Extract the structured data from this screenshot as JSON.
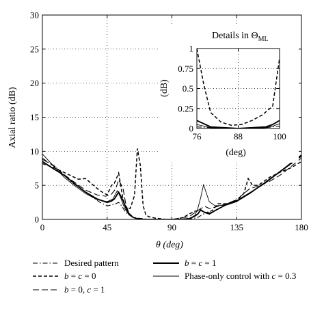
{
  "chart_data": [
    {
      "type": "line",
      "title": "",
      "xlabel": "θ (deg)",
      "ylabel": "Axial ratio (dB)",
      "xlim": [
        0,
        180
      ],
      "ylim": [
        0,
        30
      ],
      "xticks": [
        "0",
        "45",
        "90",
        "135",
        "180"
      ],
      "yticks": [
        "0",
        "5",
        "10",
        "15",
        "20",
        "25",
        "30"
      ],
      "grid": "dotted",
      "legend_position": "below",
      "series": [
        {
          "name": "Desired pattern",
          "style": "dashdot",
          "x": [
            0,
            10,
            20,
            30,
            40,
            45,
            50,
            53,
            55,
            58,
            62,
            66,
            70,
            76,
            82,
            88,
            90,
            95,
            100,
            104,
            108,
            112,
            115,
            118,
            122,
            128,
            135,
            145,
            155,
            165,
            172,
            180
          ],
          "y": [
            9.0,
            7.5,
            5.5,
            4.0,
            2.5,
            2.0,
            2.2,
            2.5,
            2.0,
            1.0,
            0.4,
            0.2,
            0.1,
            0.0,
            0.0,
            0.0,
            0.0,
            0.0,
            0.0,
            0.1,
            0.3,
            0.8,
            1.0,
            1.0,
            1.5,
            2.2,
            2.8,
            4.0,
            5.5,
            7.0,
            8.0,
            9.4
          ]
        },
        {
          "name": "b = c = 0",
          "style": "dashed",
          "x": [
            0,
            8,
            15,
            20,
            25,
            30,
            35,
            40,
            45,
            48,
            50,
            53,
            56,
            58,
            61,
            64,
            66,
            68,
            70,
            72,
            74,
            78,
            82,
            86,
            90,
            94,
            98,
            102,
            106,
            110,
            114,
            118,
            122,
            128,
            135,
            140,
            143,
            146,
            150,
            158,
            166,
            173,
            180
          ],
          "y": [
            8.2,
            7.6,
            6.9,
            6.4,
            5.9,
            6.0,
            5.1,
            4.2,
            3.6,
            5.0,
            5.3,
            6.8,
            3.0,
            1.8,
            1.6,
            3.5,
            10.4,
            8.0,
            2.0,
            0.6,
            0.4,
            0.2,
            0.1,
            0.0,
            0.0,
            0.1,
            0.3,
            0.8,
            1.2,
            1.3,
            1.0,
            1.3,
            2.3,
            2.3,
            2.8,
            3.8,
            6.0,
            5.0,
            5.0,
            6.2,
            7.0,
            7.6,
            8.5
          ]
        },
        {
          "name": "b = 0, c = 1",
          "style": "longdash",
          "x": [
            0,
            8,
            15,
            22,
            30,
            38,
            44,
            48,
            51,
            53,
            56,
            58,
            60,
            63,
            66,
            70,
            76,
            82,
            88,
            90,
            96,
            102,
            106,
            110,
            113,
            116,
            120,
            128,
            135,
            140,
            144,
            150,
            158,
            166,
            173,
            180
          ],
          "y": [
            8.8,
            7.9,
            6.6,
            5.5,
            4.3,
            3.6,
            3.4,
            3.7,
            4.5,
            5.8,
            4.6,
            2.2,
            1.0,
            0.3,
            0.1,
            0.0,
            0.0,
            0.0,
            0.0,
            0.0,
            0.2,
            0.4,
            1.0,
            1.6,
            1.9,
            1.6,
            1.8,
            2.3,
            2.9,
            3.8,
            4.5,
            4.9,
            5.6,
            6.6,
            7.8,
            9.0
          ]
        },
        {
          "name": "b = c = 1",
          "style": "solid-thick",
          "x": [
            0,
            8,
            15,
            22,
            30,
            38,
            45,
            48,
            50,
            53,
            56,
            58,
            60,
            63,
            66,
            70,
            76,
            82,
            88,
            90,
            96,
            102,
            106,
            108,
            110,
            113,
            116,
            120,
            128,
            135,
            145,
            155,
            165,
            172,
            180
          ],
          "y": [
            8.5,
            7.4,
            6.5,
            5.3,
            4.0,
            3.0,
            2.5,
            2.7,
            3.0,
            4.0,
            2.8,
            1.7,
            0.9,
            0.3,
            0.1,
            0.0,
            0.0,
            0.0,
            0.0,
            0.0,
            0.0,
            0.1,
            0.5,
            0.8,
            1.4,
            1.0,
            0.8,
            1.3,
            2.2,
            2.7,
            4.0,
            5.4,
            7.0,
            8.1,
            9.3
          ]
        },
        {
          "name": "Phase-only control with c = 0.3",
          "style": "solid-thin",
          "x": [
            0,
            8,
            15,
            22,
            30,
            38,
            45,
            49,
            52,
            54,
            57,
            60,
            64,
            68,
            72,
            78,
            84,
            90,
            96,
            102,
            106,
            108,
            110,
            112,
            114,
            116,
            120,
            128,
            135,
            145,
            155,
            165,
            172,
            180
          ],
          "y": [
            9.6,
            7.8,
            6.2,
            5.0,
            3.8,
            2.9,
            2.6,
            3.0,
            4.2,
            3.4,
            1.7,
            0.7,
            0.2,
            0.1,
            0.0,
            0.0,
            0.0,
            0.0,
            0.0,
            0.1,
            0.6,
            1.6,
            3.2,
            5.1,
            3.8,
            2.6,
            2.0,
            2.1,
            2.6,
            3.9,
            5.5,
            7.0,
            8.2,
            9.5
          ]
        }
      ]
    },
    {
      "type": "line",
      "title": "Details in Θ",
      "title_subscript": "ML",
      "xlabel": "(deg)",
      "ylabel": "(dB)",
      "xlim": [
        76,
        100
      ],
      "ylim": [
        0,
        1
      ],
      "xticks": [
        "76",
        "88",
        "100"
      ],
      "yticks": [
        "0",
        "0.25",
        "0.5",
        "0.75",
        "1"
      ],
      "grid": "dotted",
      "series": [
        {
          "style": "dashed",
          "x": [
            76,
            78,
            80,
            83,
            86,
            89,
            92,
            95,
            98,
            100
          ],
          "y": [
            1.0,
            0.55,
            0.2,
            0.08,
            0.04,
            0.05,
            0.1,
            0.17,
            0.28,
            0.88
          ]
        },
        {
          "style": "solid-thick",
          "x": [
            76,
            78,
            80,
            84,
            88,
            92,
            96,
            98,
            100
          ],
          "y": [
            0.1,
            0.06,
            0.02,
            0.01,
            0.0,
            0.01,
            0.02,
            0.05,
            0.1
          ]
        },
        {
          "style": "solid-thin",
          "x": [
            76,
            78,
            80,
            84,
            88,
            92,
            96,
            98,
            100
          ],
          "y": [
            0.05,
            0.03,
            0.01,
            0.0,
            0.0,
            0.0,
            0.01,
            0.03,
            0.06
          ]
        },
        {
          "style": "dashdot",
          "x": [
            76,
            80,
            84,
            88,
            92,
            96,
            100
          ],
          "y": [
            0.02,
            0.01,
            0.0,
            0.0,
            0.0,
            0.01,
            0.03
          ]
        }
      ]
    }
  ],
  "legend": [
    {
      "label": "Desired pattern",
      "style": "dashdot"
    },
    {
      "label": "b = c = 0",
      "style": "dashed"
    },
    {
      "label": "b = 0, c = 1",
      "style": "longdash"
    },
    {
      "label": "b = c = 1",
      "style": "solid-thick"
    },
    {
      "label": "Phase-only control with c = 0.3",
      "style": "solid-thin"
    }
  ]
}
